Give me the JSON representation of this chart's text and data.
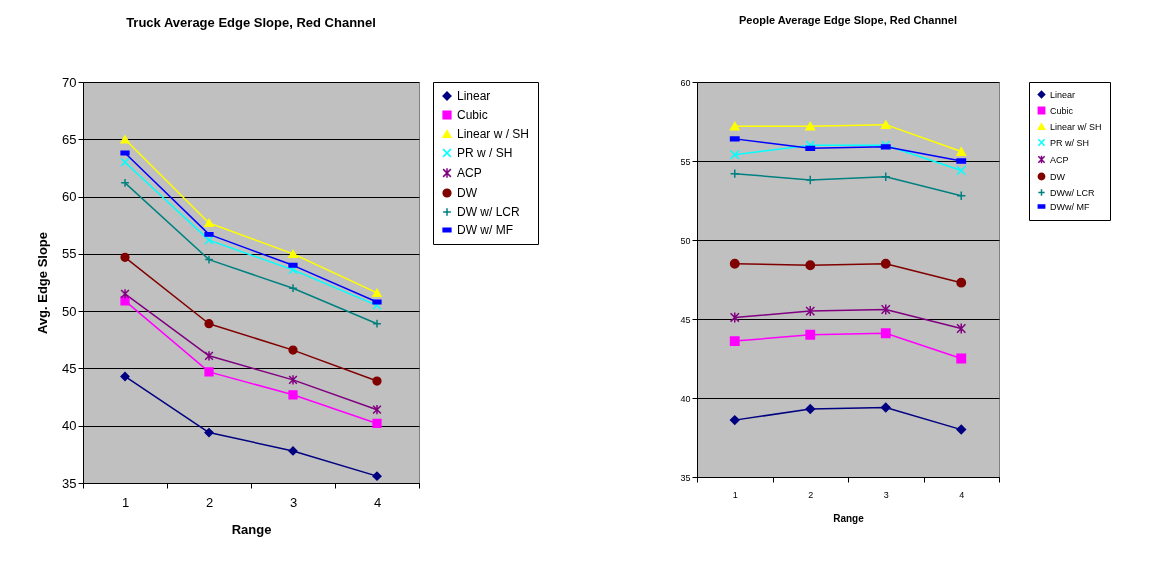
{
  "chart_data": [
    {
      "type": "line",
      "title": "Truck Average Edge Slope, Red Channel",
      "xlabel": "Range",
      "ylabel": "Avg. Edge Slope",
      "categories": [
        "1",
        "2",
        "3",
        "4"
      ],
      "ylim": [
        35,
        70
      ],
      "yticks": [
        35,
        40,
        45,
        50,
        55,
        60,
        65,
        70
      ],
      "grid": "y",
      "legend": "right",
      "series": [
        {
          "name": "Linear",
          "color": "#000080",
          "marker": "diamond",
          "values": [
            44.3,
            39.4,
            37.8,
            35.6
          ]
        },
        {
          "name": "Cubic",
          "color": "#ff00ff",
          "marker": "square",
          "values": [
            50.9,
            44.7,
            42.7,
            40.2
          ]
        },
        {
          "name": "Linear w / SH",
          "color": "#ffff00",
          "marker": "triangle",
          "values": [
            65.0,
            57.7,
            55.0,
            51.6
          ]
        },
        {
          "name": "PR w / SH",
          "color": "#00ffff",
          "marker": "cross",
          "values": [
            63.0,
            56.2,
            53.6,
            50.5
          ]
        },
        {
          "name": "ACP",
          "color": "#800080",
          "marker": "cross",
          "values": [
            51.5,
            46.1,
            44.0,
            41.4
          ]
        },
        {
          "name": "DW",
          "color": "#800000",
          "marker": "circle",
          "values": [
            54.7,
            48.9,
            46.6,
            43.9
          ]
        },
        {
          "name": "DW w/ LCR",
          "color": "#008080",
          "marker": "cross",
          "values": [
            61.2,
            54.5,
            52.0,
            48.9
          ]
        },
        {
          "name": "DW w/ MF",
          "color": "#0000ff",
          "marker": "square",
          "values": [
            63.8,
            56.7,
            54.0,
            50.8
          ]
        }
      ]
    },
    {
      "type": "line",
      "title": "People Average Edge Slope, Red Channel",
      "xlabel": "Range",
      "categories": [
        "1",
        "2",
        "3",
        "4"
      ],
      "ylim": [
        35,
        60
      ],
      "yticks": [
        35,
        40,
        45,
        50,
        55,
        60
      ],
      "grid": "y",
      "legend": "right",
      "series": [
        {
          "name": "Linear",
          "color": "#000080",
          "marker": "diamond",
          "values": [
            38.6,
            39.3,
            39.4,
            38.0
          ]
        },
        {
          "name": "Cubic",
          "color": "#ff00ff",
          "marker": "square",
          "values": [
            43.6,
            44.0,
            44.1,
            42.5
          ]
        },
        {
          "name": "Linear w/ SH",
          "color": "#ffff00",
          "marker": "triangle",
          "values": [
            57.2,
            57.2,
            57.3,
            55.6
          ]
        },
        {
          "name": "PR w/ SH",
          "color": "#00ffff",
          "marker": "cross",
          "values": [
            55.4,
            56.0,
            56.0,
            54.4
          ]
        },
        {
          "name": "ACP",
          "color": "#800080",
          "marker": "cross",
          "values": [
            45.1,
            45.5,
            45.6,
            44.4
          ]
        },
        {
          "name": "DW",
          "color": "#800000",
          "marker": "circle",
          "values": [
            48.5,
            48.4,
            48.5,
            47.3
          ]
        },
        {
          "name": "DWw/ LCR",
          "color": "#008080",
          "marker": "cross",
          "values": [
            54.2,
            53.8,
            54.0,
            52.8
          ]
        },
        {
          "name": "DWw/ MF",
          "color": "#0000ff",
          "marker": "square",
          "values": [
            56.4,
            55.8,
            55.9,
            55.0
          ]
        }
      ]
    }
  ]
}
